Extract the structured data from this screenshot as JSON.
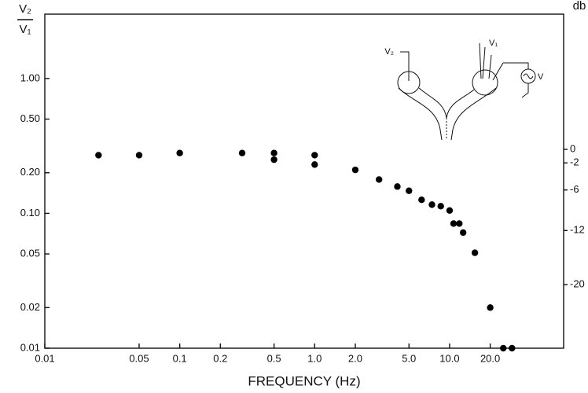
{
  "chart_data": {
    "type": "scatter",
    "y_label_numerator": "V₂",
    "y_label_denominator": "V₁",
    "x_label": "FREQUENCY (Hz)",
    "y2_label": "db",
    "annotations": [
      "V₂",
      "V₁",
      "V"
    ],
    "xscale": "log",
    "yscale": "log",
    "grid": false,
    "color": "#000000",
    "x": [
      0.025,
      0.05,
      0.1,
      0.29,
      0.5,
      0.5,
      1.0,
      1.0,
      2.0,
      3.0,
      4.1,
      5.0,
      6.2,
      7.4,
      8.6,
      10,
      10.7,
      11.8,
      12.6,
      15.4,
      20,
      25,
      29
    ],
    "values": [
      0.27,
      0.27,
      0.28,
      0.28,
      0.28,
      0.25,
      0.27,
      0.23,
      0.21,
      0.178,
      0.158,
      0.147,
      0.126,
      0.116,
      0.113,
      0.105,
      0.084,
      0.084,
      0.072,
      0.051,
      0.02,
      0.01,
      0.01
    ],
    "xlim": [
      0.01,
      70
    ],
    "ylim": [
      0.01,
      3
    ],
    "y2lim": [
      -29.4,
      20
    ],
    "xticks": [
      0.01,
      0.05,
      0.1,
      0.2,
      0.5,
      {
        "value": 1,
        "label": "1.0"
      },
      {
        "value": 2,
        "label": "2.0"
      },
      {
        "value": 5,
        "label": "5.0"
      },
      {
        "value": 10,
        "label": "10.0"
      },
      {
        "value": 20,
        "label": "20.0"
      }
    ],
    "yticks": [
      0.01,
      0.02,
      0.05,
      {
        "value": 0.1,
        "label": "0.10"
      },
      {
        "value": 0.2,
        "label": "0.20"
      },
      {
        "value": 0.5,
        "label": "0.50"
      },
      {
        "value": 1,
        "label": "1.00"
      }
    ],
    "y2ticks": [
      0,
      -2,
      -6,
      -12,
      -20
    ]
  }
}
